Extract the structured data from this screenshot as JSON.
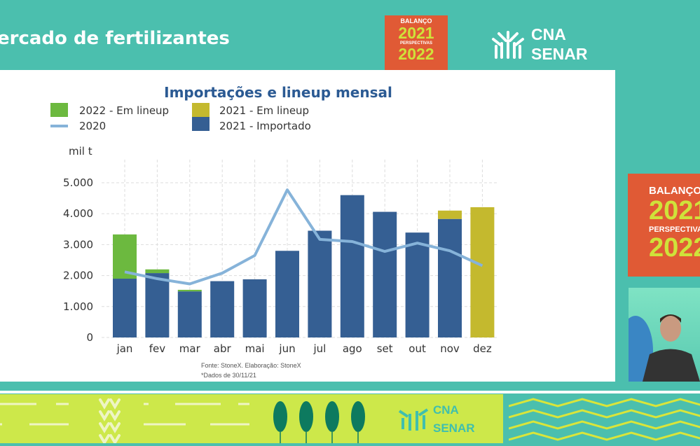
{
  "header": {
    "title": "ercado de fertilizantes"
  },
  "badge": {
    "balanco": "BALANÇO",
    "year1": "2021",
    "perspectivas": "PERSPECTIVAS",
    "year2": "2022"
  },
  "logo": {
    "line1": "CNA",
    "line2": "SENAR"
  },
  "colors": {
    "background": "#4bbfae",
    "badge": "#e05a35",
    "band": "#cde84a",
    "import_2021": "#355f93",
    "lineup_2022": "#6cb93f",
    "lineup_2021": "#c4b92e",
    "line_2020": "#86b3d9"
  },
  "chart_data": {
    "type": "bar",
    "title": "Importações e lineup mensal",
    "ylabel": "mil t",
    "ylim": [
      0,
      5000
    ],
    "yticks": [
      "0",
      "1.000",
      "2.000",
      "3.000",
      "4.000",
      "5.000"
    ],
    "grid": true,
    "legend_placement": "top-left",
    "categories": [
      "jan",
      "fev",
      "mar",
      "abr",
      "mai",
      "jun",
      "jul",
      "ago",
      "set",
      "out",
      "nov",
      "dez"
    ],
    "series": [
      {
        "name": "2021 - Importado",
        "kind": "stacked-bar",
        "values": [
          1900,
          2080,
          1490,
          1820,
          1880,
          2800,
          3450,
          4600,
          4060,
          3390,
          3830,
          0
        ]
      },
      {
        "name": "2022 - Em lineup",
        "kind": "stacked-bar",
        "values": [
          1430,
          120,
          50,
          0,
          0,
          0,
          0,
          0,
          0,
          0,
          0,
          0
        ]
      },
      {
        "name": "2021 - Em lineup",
        "kind": "stacked-bar",
        "values": [
          0,
          0,
          0,
          0,
          0,
          0,
          0,
          0,
          0,
          0,
          270,
          4210
        ]
      },
      {
        "name": "2020",
        "kind": "line",
        "values": [
          2120,
          1900,
          1730,
          2080,
          2650,
          4770,
          3170,
          3100,
          2780,
          3050,
          2800,
          2320
        ]
      }
    ],
    "source": "Fonte: StoneX. Elaboração: StoneX",
    "note": "*Dados de 30/11/21"
  }
}
